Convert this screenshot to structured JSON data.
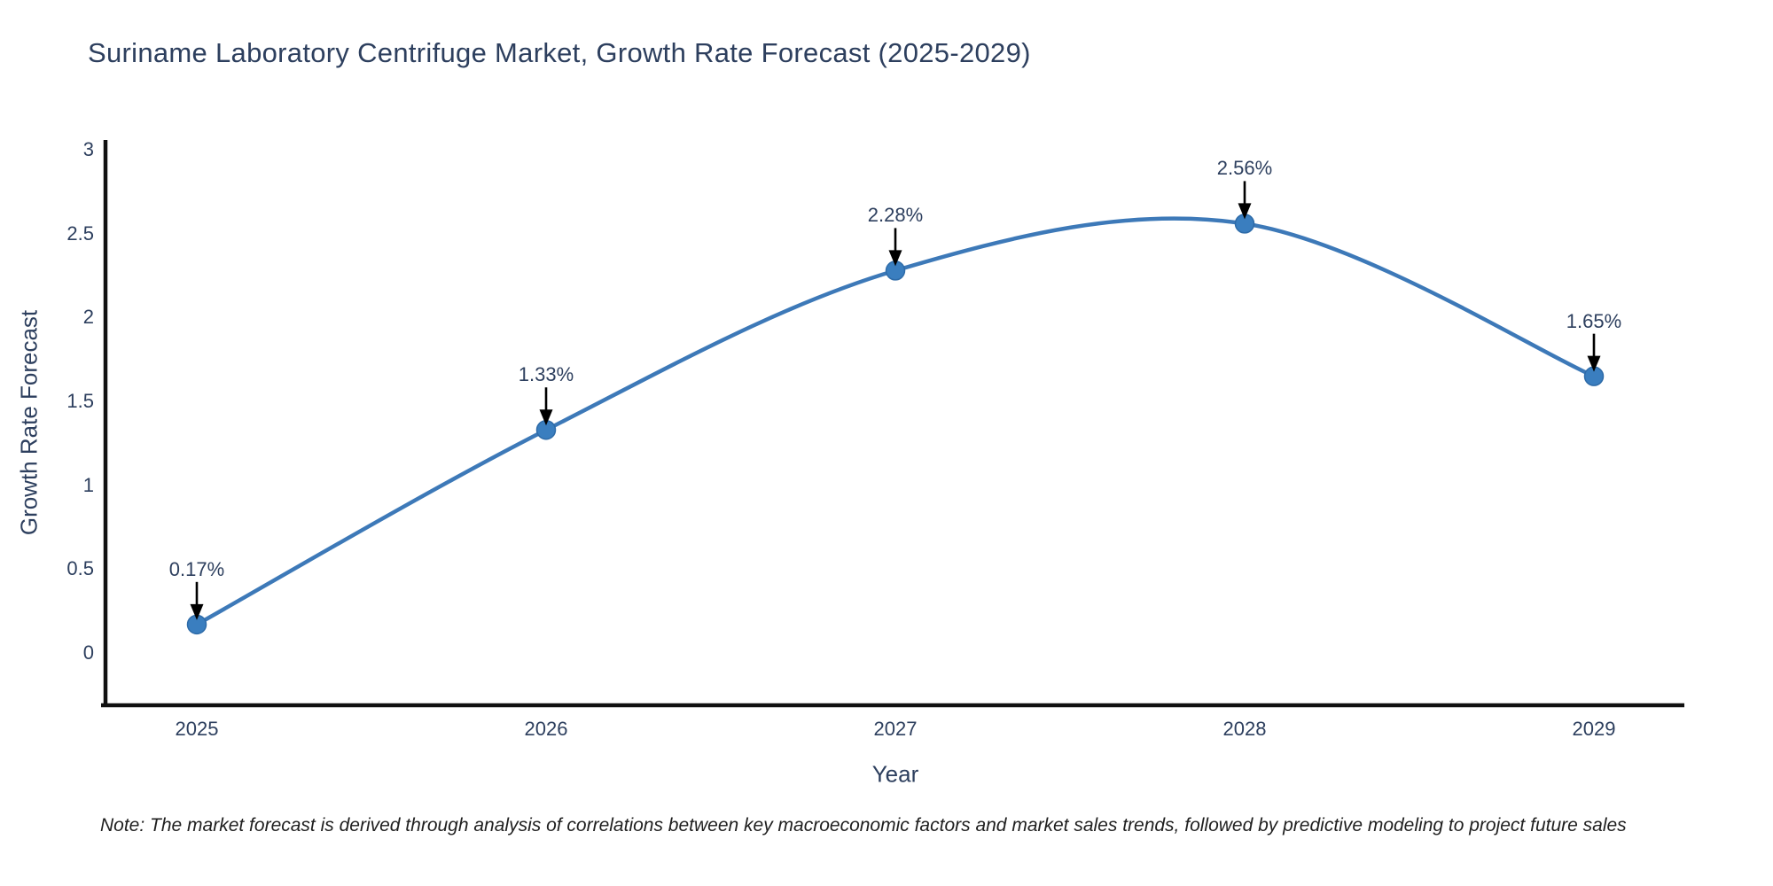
{
  "chart_data": {
    "type": "line",
    "title": "Suriname Laboratory Centrifuge Market, Growth Rate Forecast (2025-2029)",
    "xlabel": "Year",
    "ylabel": "Growth Rate Forecast",
    "categories": [
      2025,
      2026,
      2027,
      2028,
      2029
    ],
    "values": [
      0.17,
      1.33,
      2.28,
      2.56,
      1.65
    ],
    "point_labels": [
      "0.17%",
      "1.33%",
      "2.28%",
      "2.56%",
      "1.65%"
    ],
    "yticks": [
      0,
      0.5,
      1,
      1.5,
      2,
      2.5,
      3
    ],
    "ylim": [
      -0.32,
      3.06
    ],
    "xlim": [
      2024.73,
      2029.26
    ],
    "line_shape": "spline",
    "grid": false,
    "legend_position": "none",
    "annotation_style": "black-down-arrow-to-point",
    "colors": {
      "line": "#3d79b8",
      "marker": "#3a7ebf",
      "marker_edge": "#2e6ba8",
      "axis": "#111111",
      "text": "#2d3f5e",
      "arrow": "#000000"
    }
  },
  "note": {
    "text": "Note: The market forecast is derived through analysis of correlations between key macroeconomic factors and market sales trends, followed by predictive modeling to project future sales"
  }
}
